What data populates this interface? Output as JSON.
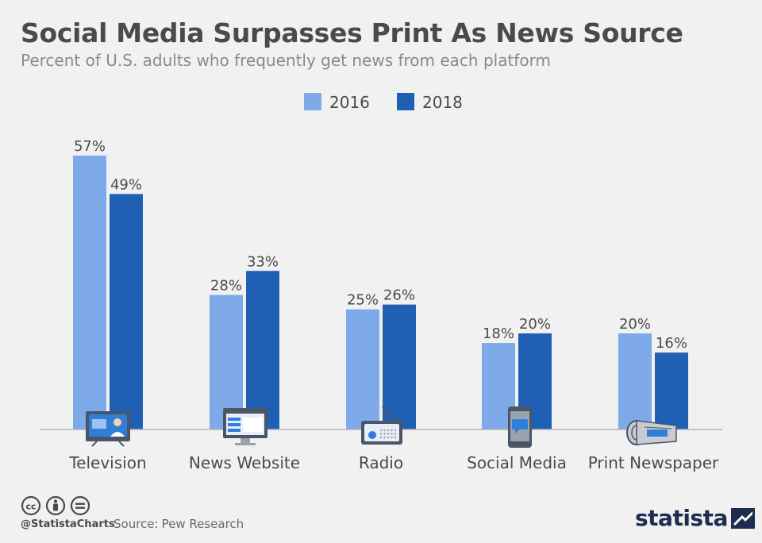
{
  "title": "Social Media Surpasses Print As News Source",
  "subtitle": "Percent of U.S. adults who frequently get news from each platform",
  "colors": {
    "s2016": "#7faaea",
    "s2018": "#1f5fb4",
    "text": "#4a4a4a",
    "axis": "#b5b5b5",
    "background": "#f1f1f1"
  },
  "chart_data": {
    "type": "bar",
    "categories": [
      "Television",
      "News Website",
      "Radio",
      "Social Media",
      "Print Newspaper"
    ],
    "category_icons": [
      "television-icon",
      "news-website-icon",
      "radio-icon",
      "smartphone-icon",
      "newspaper-icon"
    ],
    "series": [
      {
        "name": "2016",
        "values": [
          57,
          28,
          25,
          18,
          20
        ]
      },
      {
        "name": "2018",
        "values": [
          49,
          33,
          26,
          20,
          16
        ]
      }
    ],
    "value_suffix": "%",
    "ylim": [
      0,
      60
    ],
    "grid": false,
    "legend": "top-center",
    "xlabel": "",
    "ylabel": ""
  },
  "footer": {
    "license_icons": [
      "creative-commons-icon",
      "attribution-icon",
      "no-derivatives-icon"
    ],
    "handle": "@StatistaCharts",
    "source_label": "Source:",
    "source": "Pew Research",
    "logo_text": "statista"
  }
}
